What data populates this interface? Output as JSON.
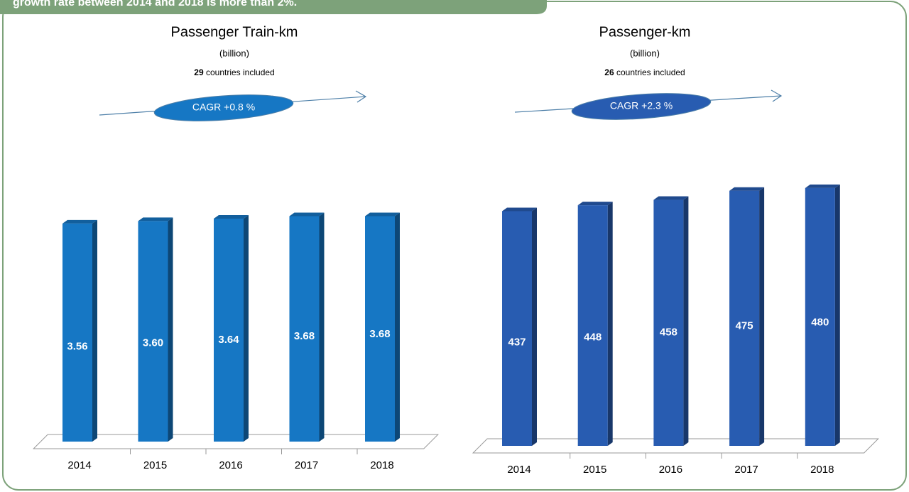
{
  "banner": "growth rate between 2014 and 2018 is more than 2%.",
  "chart_data": [
    {
      "type": "bar",
      "title": "Passenger Train-km",
      "subtitle": "(billion)",
      "note": {
        "count": "29",
        "text": "countries included"
      },
      "annotation": "CAGR +0.8 %",
      "categories": [
        "2014",
        "2015",
        "2016",
        "2017",
        "2018"
      ],
      "values": [
        3.56,
        3.6,
        3.64,
        3.68,
        3.68
      ],
      "value_labels": [
        "3.56",
        "3.60",
        "3.64",
        "3.68",
        "3.68"
      ],
      "color": "#1677c4",
      "ylim": [
        0,
        4.3
      ]
    },
    {
      "type": "bar",
      "title": "Passenger-km",
      "subtitle": "(billion)",
      "note": {
        "count": "26",
        "text": "countries included"
      },
      "annotation": "CAGR +2.3 %",
      "categories": [
        "2014",
        "2015",
        "2016",
        "2017",
        "2018"
      ],
      "values": [
        437,
        448,
        458,
        475,
        480
      ],
      "color": "#285cb1",
      "ylim": [
        0,
        505
      ]
    }
  ]
}
